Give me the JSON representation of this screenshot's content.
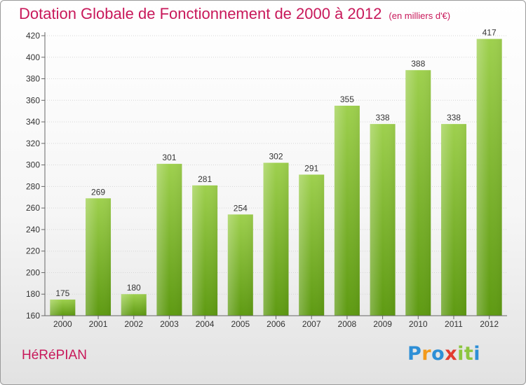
{
  "header": {
    "title": "Dotation Globale de Fonctionnement de 2000 à 2012",
    "unit": "(en milliers d'€)"
  },
  "footer": {
    "commune": "HéRéPIAN",
    "logo": {
      "letters": [
        "P",
        "r",
        "o",
        "x",
        "i",
        "t",
        "i"
      ],
      "colors": [
        "#2e8fd6",
        "#f39a1c",
        "#2e8fd6",
        "#e33b2f",
        "#8dc63f",
        "#8dc63f",
        "#2e8fd6"
      ]
    }
  },
  "chart_data": {
    "type": "bar",
    "title": "Dotation Globale de Fonctionnement de 2000 à 2012",
    "subtitle": "(en milliers d'€)",
    "categories": [
      "2000",
      "2001",
      "2002",
      "2003",
      "2004",
      "2005",
      "2006",
      "2007",
      "2008",
      "2009",
      "2010",
      "2011",
      "2012"
    ],
    "values": [
      175,
      269,
      180,
      301,
      281,
      254,
      302,
      291,
      355,
      338,
      388,
      338,
      417
    ],
    "ylim": [
      160,
      420
    ],
    "yticks": [
      160,
      180,
      200,
      220,
      240,
      260,
      280,
      300,
      320,
      340,
      360,
      380,
      400,
      420
    ],
    "grid": true,
    "bar_color": "#7cb82a"
  }
}
